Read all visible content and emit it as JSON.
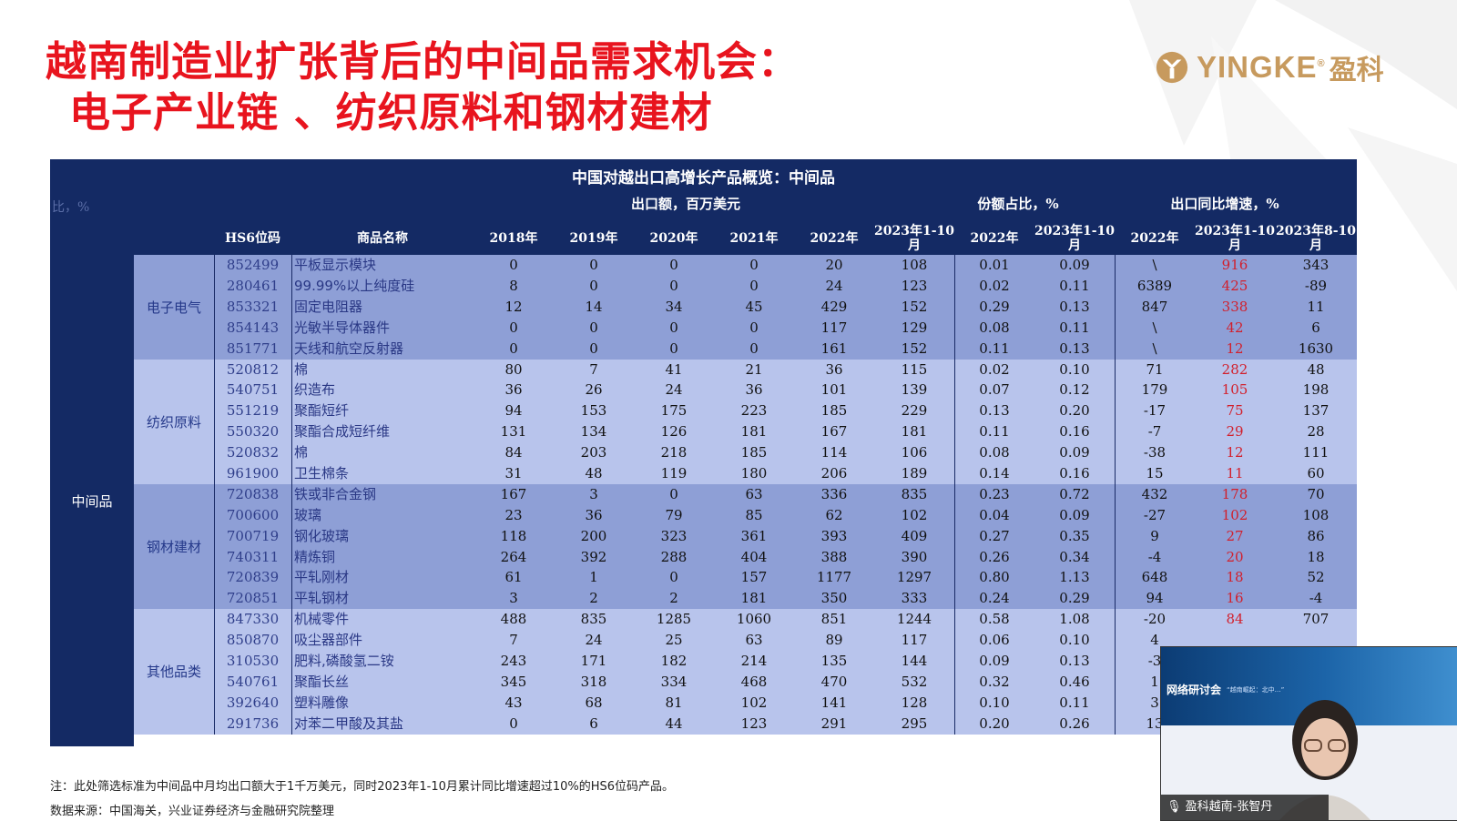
{
  "title": {
    "line1": "越南制造业扩张背后的中间品需求机会：",
    "line2": "电子产业链 、纺织原料和钢材建材"
  },
  "logo": {
    "text": "YINGKE",
    "reg": "®",
    "cn": "盈科"
  },
  "table": {
    "title": "中国对越出口高增长产品概览：中间品",
    "ghost": "比，%",
    "group_headers": {
      "export": "出口额，百万美元",
      "share": "份额占比，%",
      "growth": "出口同比增速，%"
    },
    "col_headers": [
      "HS6位码",
      "商品名称",
      "2018年",
      "2019年",
      "2020年",
      "2021年",
      "2022年",
      "2023年1-10月",
      "2022年",
      "2023年1-10月",
      "2022年",
      "2023年1-10月",
      "2023年8-10月"
    ],
    "main_category": "中间品",
    "groups": [
      {
        "name": "电子电气",
        "rows": [
          [
            "852499",
            "平板显示模块",
            "0",
            "0",
            "0",
            "0",
            "20",
            "108",
            "0.01",
            "0.09",
            "\\",
            "916",
            "343"
          ],
          [
            "280461",
            "99.99%以上纯度硅",
            "8",
            "0",
            "0",
            "0",
            "24",
            "123",
            "0.02",
            "0.11",
            "6389",
            "425",
            "-89"
          ],
          [
            "853321",
            "固定电阻器",
            "12",
            "14",
            "34",
            "45",
            "429",
            "152",
            "0.29",
            "0.13",
            "847",
            "338",
            "11"
          ],
          [
            "854143",
            "光敏半导体器件",
            "0",
            "0",
            "0",
            "0",
            "117",
            "129",
            "0.08",
            "0.11",
            "\\",
            "42",
            "6"
          ],
          [
            "851771",
            "天线和航空反射器",
            "0",
            "0",
            "0",
            "0",
            "161",
            "152",
            "0.11",
            "0.13",
            "\\",
            "12",
            "1630"
          ]
        ]
      },
      {
        "name": "纺织原料",
        "rows": [
          [
            "520812",
            "棉",
            "80",
            "7",
            "41",
            "21",
            "36",
            "115",
            "0.02",
            "0.10",
            "71",
            "282",
            "48"
          ],
          [
            "540751",
            "织造布",
            "36",
            "26",
            "24",
            "36",
            "101",
            "139",
            "0.07",
            "0.12",
            "179",
            "105",
            "198"
          ],
          [
            "551219",
            "聚酯短纤",
            "94",
            "153",
            "175",
            "223",
            "185",
            "229",
            "0.13",
            "0.20",
            "-17",
            "75",
            "137"
          ],
          [
            "550320",
            "聚酯合成短纤维",
            "131",
            "134",
            "126",
            "181",
            "167",
            "181",
            "0.11",
            "0.16",
            "-7",
            "29",
            "28"
          ],
          [
            "520832",
            "棉",
            "84",
            "203",
            "218",
            "185",
            "114",
            "106",
            "0.08",
            "0.09",
            "-38",
            "12",
            "111"
          ],
          [
            "961900",
            "卫生棉条",
            "31",
            "48",
            "119",
            "180",
            "206",
            "189",
            "0.14",
            "0.16",
            "15",
            "11",
            "60"
          ]
        ]
      },
      {
        "name": "钢材建材",
        "rows": [
          [
            "720838",
            "铁或非合金钢",
            "167",
            "3",
            "0",
            "63",
            "336",
            "835",
            "0.23",
            "0.72",
            "432",
            "178",
            "70"
          ],
          [
            "700600",
            "玻璃",
            "23",
            "36",
            "79",
            "85",
            "62",
            "102",
            "0.04",
            "0.09",
            "-27",
            "102",
            "108"
          ],
          [
            "700719",
            "钢化玻璃",
            "118",
            "200",
            "323",
            "361",
            "393",
            "409",
            "0.27",
            "0.35",
            "9",
            "27",
            "86"
          ],
          [
            "740311",
            "精炼铜",
            "264",
            "392",
            "288",
            "404",
            "388",
            "390",
            "0.26",
            "0.34",
            "-4",
            "20",
            "18"
          ],
          [
            "720839",
            "平轧刚材",
            "61",
            "1",
            "0",
            "157",
            "1177",
            "1297",
            "0.80",
            "1.13",
            "648",
            "18",
            "52"
          ],
          [
            "720851",
            "平轧钢材",
            "3",
            "2",
            "2",
            "181",
            "350",
            "333",
            "0.24",
            "0.29",
            "94",
            "16",
            "-4"
          ]
        ]
      },
      {
        "name": "其他品类",
        "rows": [
          [
            "847330",
            "机械零件",
            "488",
            "835",
            "1285",
            "1060",
            "851",
            "1244",
            "0.58",
            "1.08",
            "-20",
            "84",
            "707"
          ],
          [
            "850870",
            "吸尘器部件",
            "7",
            "24",
            "25",
            "63",
            "89",
            "117",
            "0.06",
            "0.10",
            "4",
            "",
            ""
          ],
          [
            "310530",
            "肥料,磷酸氢二铵",
            "243",
            "171",
            "182",
            "214",
            "135",
            "144",
            "0.09",
            "0.13",
            "-3",
            "",
            ""
          ],
          [
            "540761",
            "聚酯长丝",
            "345",
            "318",
            "334",
            "468",
            "470",
            "532",
            "0.32",
            "0.46",
            "1",
            "",
            ""
          ],
          [
            "392640",
            "塑料雕像",
            "43",
            "68",
            "81",
            "102",
            "141",
            "128",
            "0.10",
            "0.11",
            "3",
            "",
            ""
          ],
          [
            "291736",
            "对苯二甲酸及其盐",
            "0",
            "6",
            "44",
            "123",
            "291",
            "295",
            "0.20",
            "0.26",
            "13",
            "",
            ""
          ]
        ]
      }
    ]
  },
  "note": "注：此处筛选标准为中间品中月均出口额大于1千万美元，同时2023年1-10月累计同比增速超过10%的HS6位码产品。",
  "source": "数据来源：中国海关，兴业证券经济与金融研究院整理",
  "video": {
    "webinar_label": "网络研讨会",
    "subtitle": "“越南崛起：北中…”",
    "speaker": "盈科越南-张智丹"
  },
  "colors": {
    "title_red": "#e8141e",
    "navy": "#142a64",
    "band_dark": "#8e9fd6",
    "band_light": "#b8c4ec",
    "growth_red": "#d21f2b",
    "logo_gold": "#c79a5e"
  }
}
